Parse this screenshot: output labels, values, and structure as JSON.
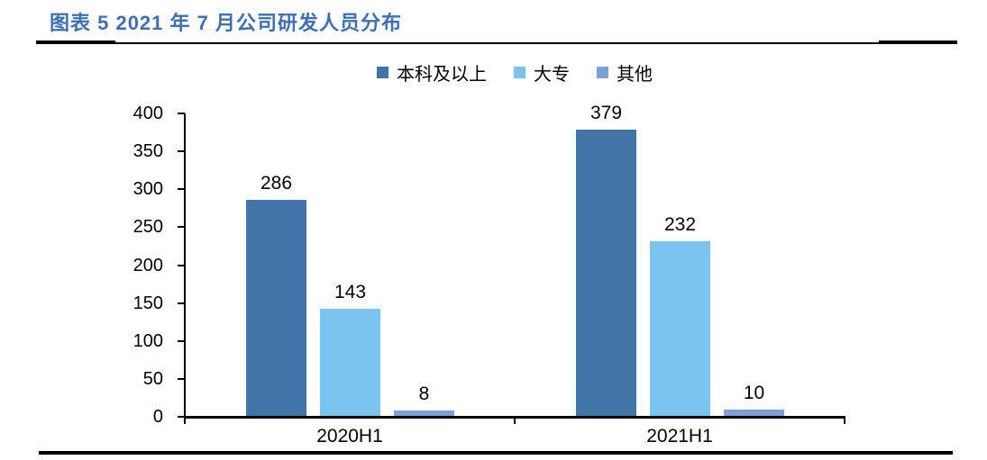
{
  "header": {
    "title": "图表 5 2021 年 7 月公司研发人员分布"
  },
  "chart_data": {
    "type": "bar",
    "title": "图表 5 2021 年 7 月公司研发人员分布",
    "categories": [
      "2020H1",
      "2021H1"
    ],
    "series": [
      {
        "name": "本科及以上",
        "color": "#4273A9",
        "values": [
          286,
          379
        ]
      },
      {
        "name": "大专",
        "color": "#7BC3F0",
        "values": [
          143,
          232
        ]
      },
      {
        "name": "其他",
        "color": "#7E9FD5",
        "values": [
          8,
          10
        ]
      }
    ],
    "xlabel": "",
    "ylabel": "",
    "ylim": [
      0,
      400
    ],
    "yticks": [
      0,
      50,
      100,
      150,
      200,
      250,
      300,
      350,
      400
    ],
    "grid": false,
    "legend_position": "top",
    "data_labels": true,
    "axis_color": "#000000",
    "title_color": "#3E6FB3"
  }
}
